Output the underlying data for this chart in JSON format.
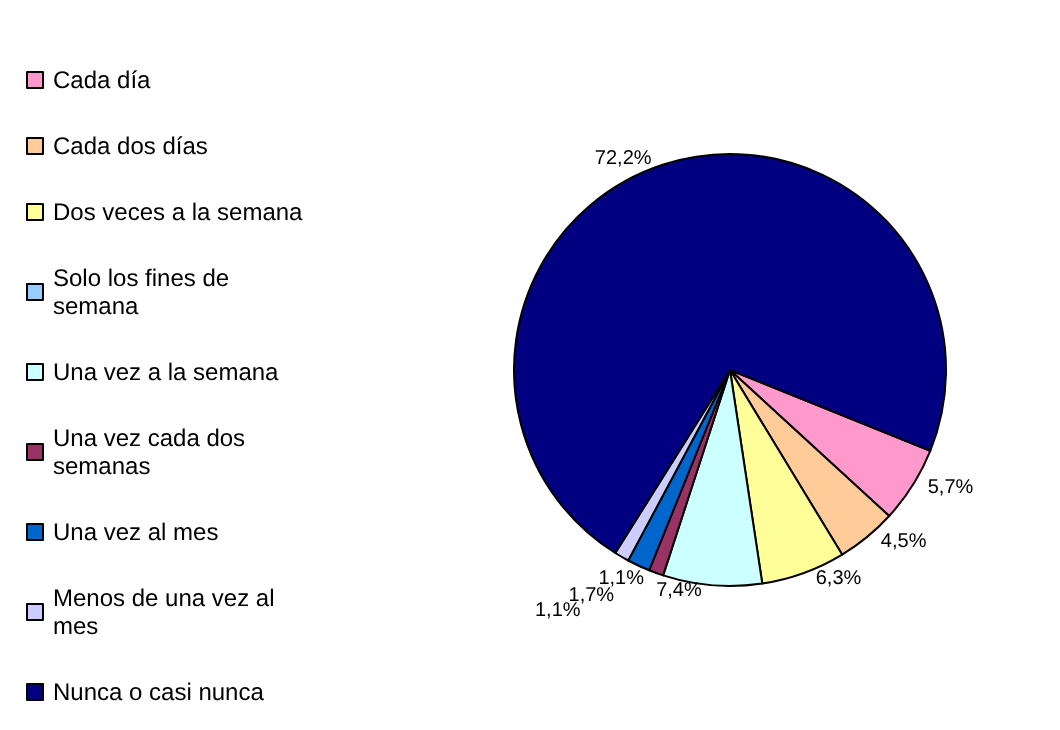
{
  "chart_data": {
    "type": "pie",
    "categories": [
      "Cada día",
      "Cada dos días",
      "Dos veces a la semana",
      "Solo los fines de semana",
      "Una vez a la semana",
      "Una vez cada dos semanas",
      "Una vez al mes",
      "Menos de una vez al mes",
      "Nunca o casi nunca"
    ],
    "values": [
      5.7,
      4.5,
      6.3,
      0,
      7.4,
      1.1,
      1.7,
      1.1,
      72.2
    ],
    "value_labels": [
      "5,7%",
      "4,5%",
      "6,3%",
      null,
      "7,4%",
      "1,1%",
      "1,7%",
      "1,1%",
      "72,2%"
    ],
    "colors": [
      "#ff99cc",
      "#ffcc99",
      "#ffff99",
      "#99ccff",
      "#ccffff",
      "#993366",
      "#0066cc",
      "#ccccff",
      "#000080"
    ],
    "legend": "left"
  }
}
